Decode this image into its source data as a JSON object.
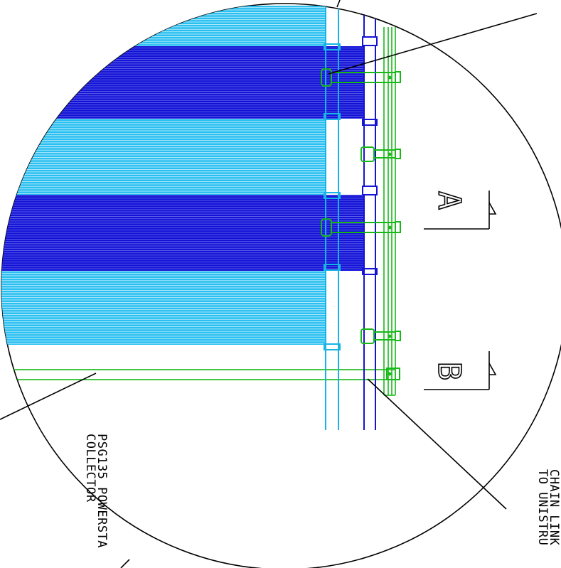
{
  "drawing": {
    "section_markers": [
      {
        "letter": "A"
      },
      {
        "letter": "B"
      }
    ],
    "notes": {
      "collector_line1": "PSG135 POWERSTA",
      "collector_line2": "COLLECTOR",
      "chain_line1": "CHAIN LINK",
      "chain_line2": "TO UNISTRU"
    },
    "colors": {
      "line": "#000000",
      "cyan": "#19b4e6",
      "blue": "#1414d2",
      "green": "#18b818",
      "background": "#ffffff"
    }
  }
}
